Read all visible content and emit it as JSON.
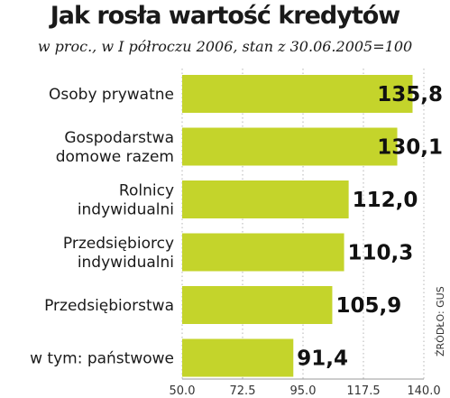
{
  "chart_data": {
    "type": "bar",
    "orientation": "horizontal",
    "title": "Jak rosła wartość kredytów",
    "subtitle": "w proc., w I półroczu 2006, stan z 30.06.2005=100",
    "categories": [
      [
        "Osoby prywatne"
      ],
      [
        "Gospodarstwa",
        "domowe razem"
      ],
      [
        "Rolnicy",
        "indywidualni"
      ],
      [
        "Przedsiębiorcy",
        "indywidualni"
      ],
      [
        "Przedsiębiorstwa"
      ],
      [
        "w tym: państwowe"
      ]
    ],
    "values": [
      135.8,
      130.1,
      112.0,
      110.3,
      105.9,
      91.4
    ],
    "value_labels": [
      "135,8",
      "130,1",
      "112,0",
      "110,3",
      "105,9",
      "91,4"
    ],
    "xlim": [
      50,
      140
    ],
    "x_ticks": [
      50,
      72.5,
      95,
      117.5,
      140
    ],
    "x_tick_labels": [
      "50.0",
      "72.5",
      "95.0",
      "117.5",
      "140.0"
    ],
    "grid": "vertical dotted",
    "bar_color": "#c4d42b",
    "source": "ŹRÓDŁO: GUS"
  }
}
